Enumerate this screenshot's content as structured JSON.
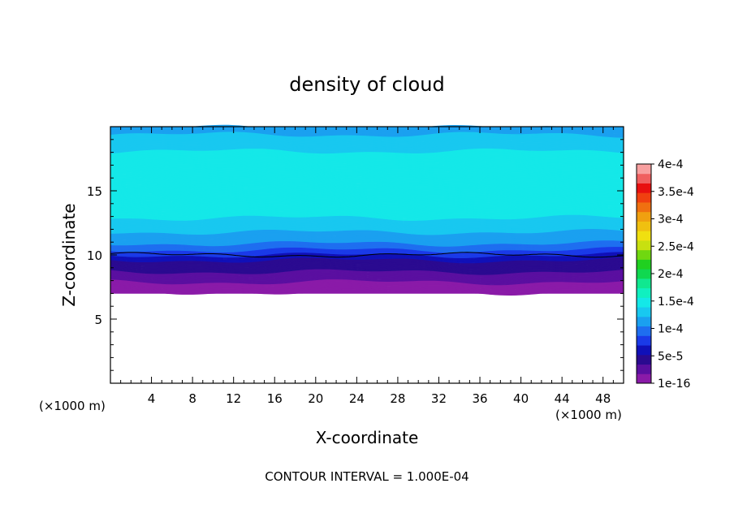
{
  "chart_data": {
    "type": "heatmap",
    "title": "density of cloud",
    "xlabel": "X-coordinate",
    "ylabel": "Z-coordinate",
    "x_unit_left": "(×1000 m)",
    "x_unit_right": "(×1000 m)",
    "xlim": [
      0,
      50
    ],
    "ylim": [
      0,
      20
    ],
    "x_ticks": [
      4,
      8,
      12,
      16,
      20,
      24,
      28,
      32,
      36,
      40,
      44,
      48
    ],
    "y_ticks": [
      5,
      10,
      15
    ],
    "footer": "CONTOUR INTERVAL = 1.000E-04",
    "colorbar": {
      "labels": [
        "1e-16",
        "5e-5",
        "1e-4",
        "1.5e-4",
        "2e-4",
        "2.5e-4",
        "3e-4",
        "3.5e-4",
        "4e-4"
      ],
      "colors": [
        "#8a1aa8",
        "#5a0fa0",
        "#2a0a90",
        "#1010b8",
        "#1a3ae8",
        "#1e6ef0",
        "#1aa0f0",
        "#18c8f0",
        "#14e8e8",
        "#10f0c0",
        "#10e890",
        "#10d850",
        "#20d020",
        "#70d810",
        "#c8e010",
        "#f0e010",
        "#f0c010",
        "#f0a010",
        "#f07010",
        "#f04010",
        "#e81010",
        "#f06060",
        "#f8a0a0"
      ]
    },
    "profile": {
      "z_levels": [
        7.0,
        7.5,
        8.0,
        8.5,
        9.0,
        9.5,
        10.0,
        10.5,
        11.0,
        12.0,
        13.0,
        16.5,
        18.0,
        19.5,
        20.0
      ],
      "values": [
        1e-16,
        1e-05,
        2e-05,
        3e-05,
        4e-05,
        5e-05,
        7e-05,
        9e-05,
        0.00011,
        0.000125,
        0.00014,
        0.000155,
        0.00014,
        0.00012,
        0.000115
      ]
    },
    "contour_line_z": 10.0,
    "cloud_base_z": 7.0,
    "grid": false,
    "legend_position": "right"
  }
}
